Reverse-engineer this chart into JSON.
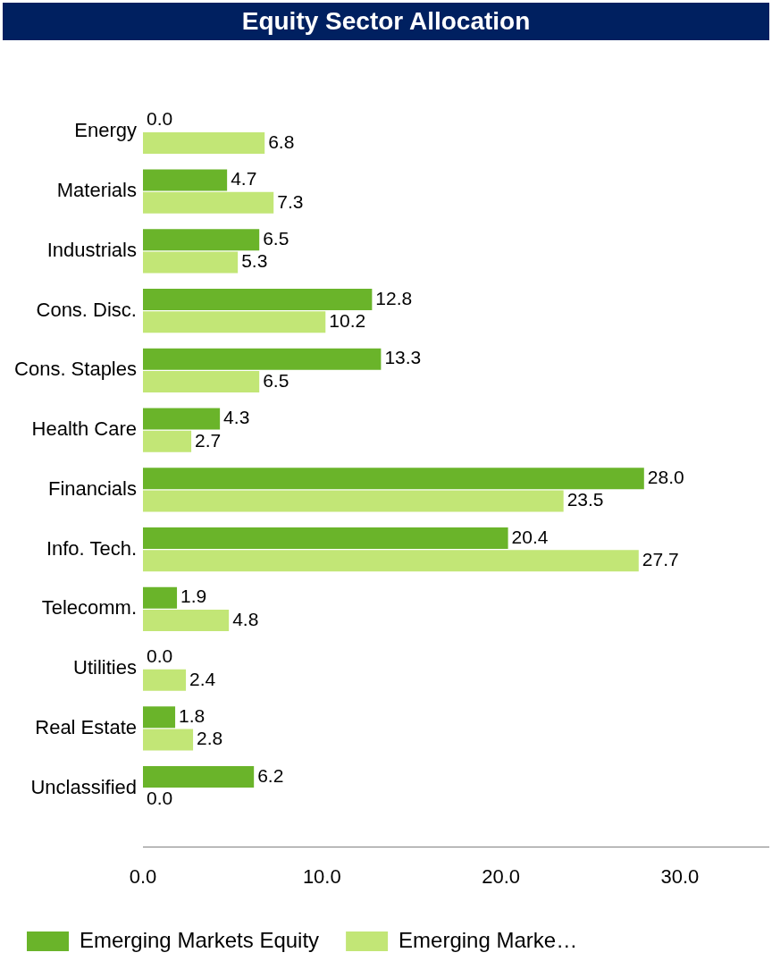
{
  "chart_data": {
    "type": "bar",
    "title": "Equity Sector Allocation",
    "orientation": "horizontal",
    "categories": [
      "Energy",
      "Materials",
      "Industrials",
      "Cons. Disc.",
      "Cons. Staples",
      "Health Care",
      "Financials",
      "Info. Tech.",
      "Telecomm.",
      "Utilities",
      "Real Estate",
      "Unclassified"
    ],
    "series": [
      {
        "name": "Emerging Markets Equity",
        "color": "#6ab42a",
        "values": [
          0.0,
          4.7,
          6.5,
          12.8,
          13.3,
          4.3,
          28.0,
          20.4,
          1.9,
          0.0,
          1.8,
          6.2
        ],
        "value_labels": [
          "0.0",
          "4.7",
          "6.5",
          "12.8",
          "13.3",
          "4.3",
          "28.0",
          "20.4",
          "1.9",
          "0.0",
          "1.8",
          "6.2"
        ]
      },
      {
        "name": "Emerging Marke…",
        "color": "#c2e676",
        "values": [
          6.8,
          7.3,
          5.3,
          10.2,
          6.5,
          2.7,
          23.5,
          27.7,
          4.8,
          2.4,
          2.8,
          0.0
        ],
        "value_labels": [
          "6.8",
          "7.3",
          "5.3",
          "10.2",
          "6.5",
          "2.7",
          "23.5",
          "27.7",
          "4.8",
          "2.4",
          "2.8",
          "0.0"
        ]
      }
    ],
    "xlim": [
      0,
      35
    ],
    "xticks": [
      {
        "value": 0,
        "label": "0.0"
      },
      {
        "value": 10,
        "label": "10.0"
      },
      {
        "value": 20,
        "label": "20.0"
      },
      {
        "value": 30,
        "label": "30.0"
      }
    ],
    "legend": "bottom"
  }
}
